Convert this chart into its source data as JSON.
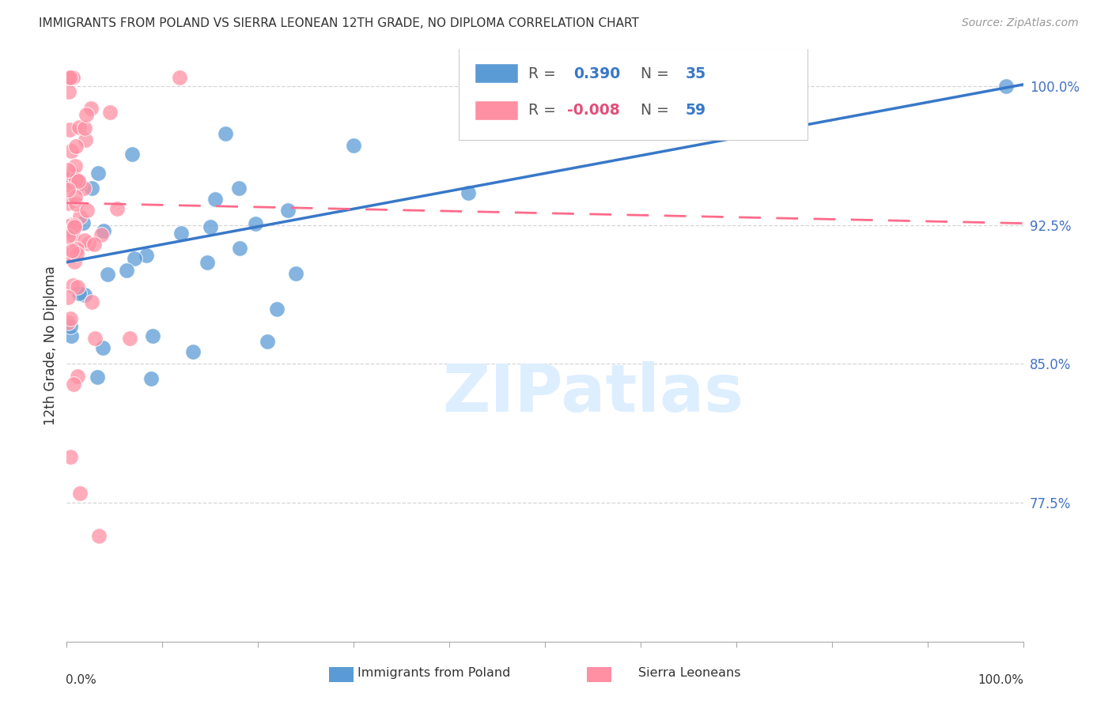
{
  "title": "IMMIGRANTS FROM POLAND VS SIERRA LEONEAN 12TH GRADE, NO DIPLOMA CORRELATION CHART",
  "source": "Source: ZipAtlas.com",
  "ylabel": "12th Grade, No Diploma",
  "y_tick_vals": [
    0.775,
    0.85,
    0.925,
    1.0
  ],
  "y_tick_labels": [
    "77.5%",
    "85.0%",
    "92.5%",
    "100.0%"
  ],
  "xlim": [
    0.0,
    1.0
  ],
  "ylim": [
    0.7,
    1.02
  ],
  "blue_color": "#5B9BD5",
  "pink_color": "#FF8FA3",
  "trend_blue_color": "#3878C8",
  "trend_pink_color": "#FF6B8A",
  "blue_trend_x": [
    0.0,
    1.0
  ],
  "blue_trend_y": [
    0.905,
    1.001
  ],
  "pink_trend_x": [
    0.0,
    1.0
  ],
  "pink_trend_y": [
    0.937,
    0.926
  ],
  "watermark": "ZIPatlas",
  "watermark_color": "#DDEEFF",
  "watermark_fontsize": 60,
  "blue_N": 35,
  "blue_R": "0.390",
  "pink_N": 59,
  "pink_R": "-0.008",
  "legend_R_color": "#3878C8",
  "legend_Rneg_color": "#E0507A",
  "legend_N_color": "#3878C8",
  "bottom_label_blue": "Immigrants from Poland",
  "bottom_label_pink": "Sierra Leoneans"
}
